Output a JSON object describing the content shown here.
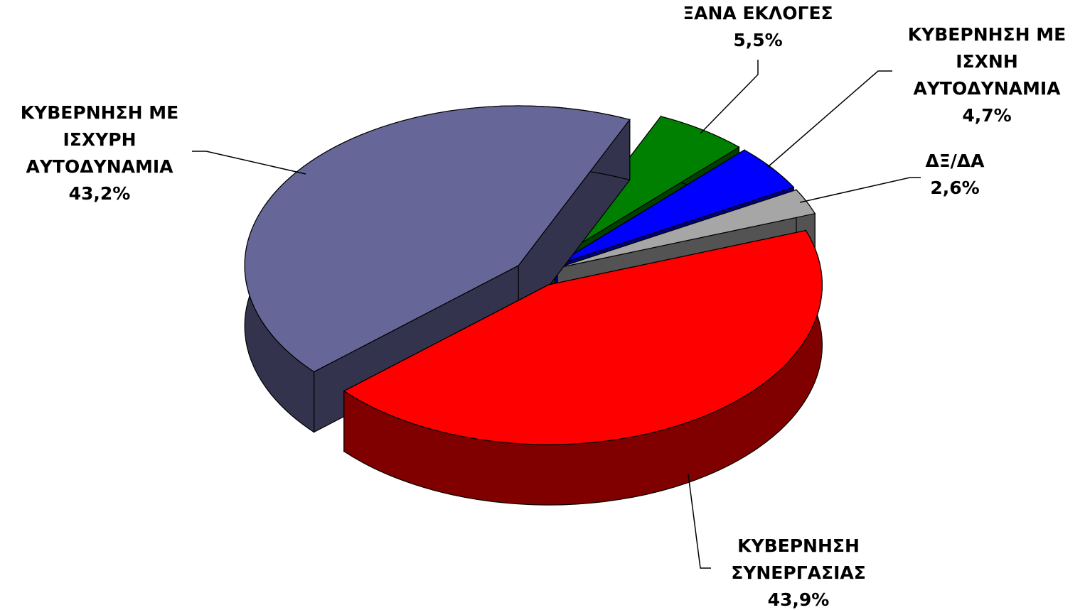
{
  "chart_data": {
    "type": "pie3d",
    "categories": [
      "ΞΑΝΑ ΕΚΛΟΓΕΣ",
      "ΚΥΒΕΡΝΗΣΗ ΜΕ ΙΣΧΝΗ ΑΥΤΟΔΥΝΑΜΙΑ",
      "ΔΞ/ΔΑ",
      "ΚΥΒΕΡΝΗΣΗ ΣΥΝΕΡΓΑΣΙΑΣ",
      "ΚΥΒΕΡΝΗΣΗ ΜΕ ΙΣΧΥΡΗ ΑΥΤΟΔΥΝΑΜΙΑ"
    ],
    "values": [
      5.5,
      4.7,
      2.6,
      43.9,
      43.2
    ],
    "value_labels": [
      "5,5%",
      "4,7%",
      "2,6%",
      "43,9%",
      "43,2%"
    ],
    "colors": [
      "#008000",
      "#0000ff",
      "#a6a6a6",
      "#ff0000",
      "#666699"
    ]
  }
}
